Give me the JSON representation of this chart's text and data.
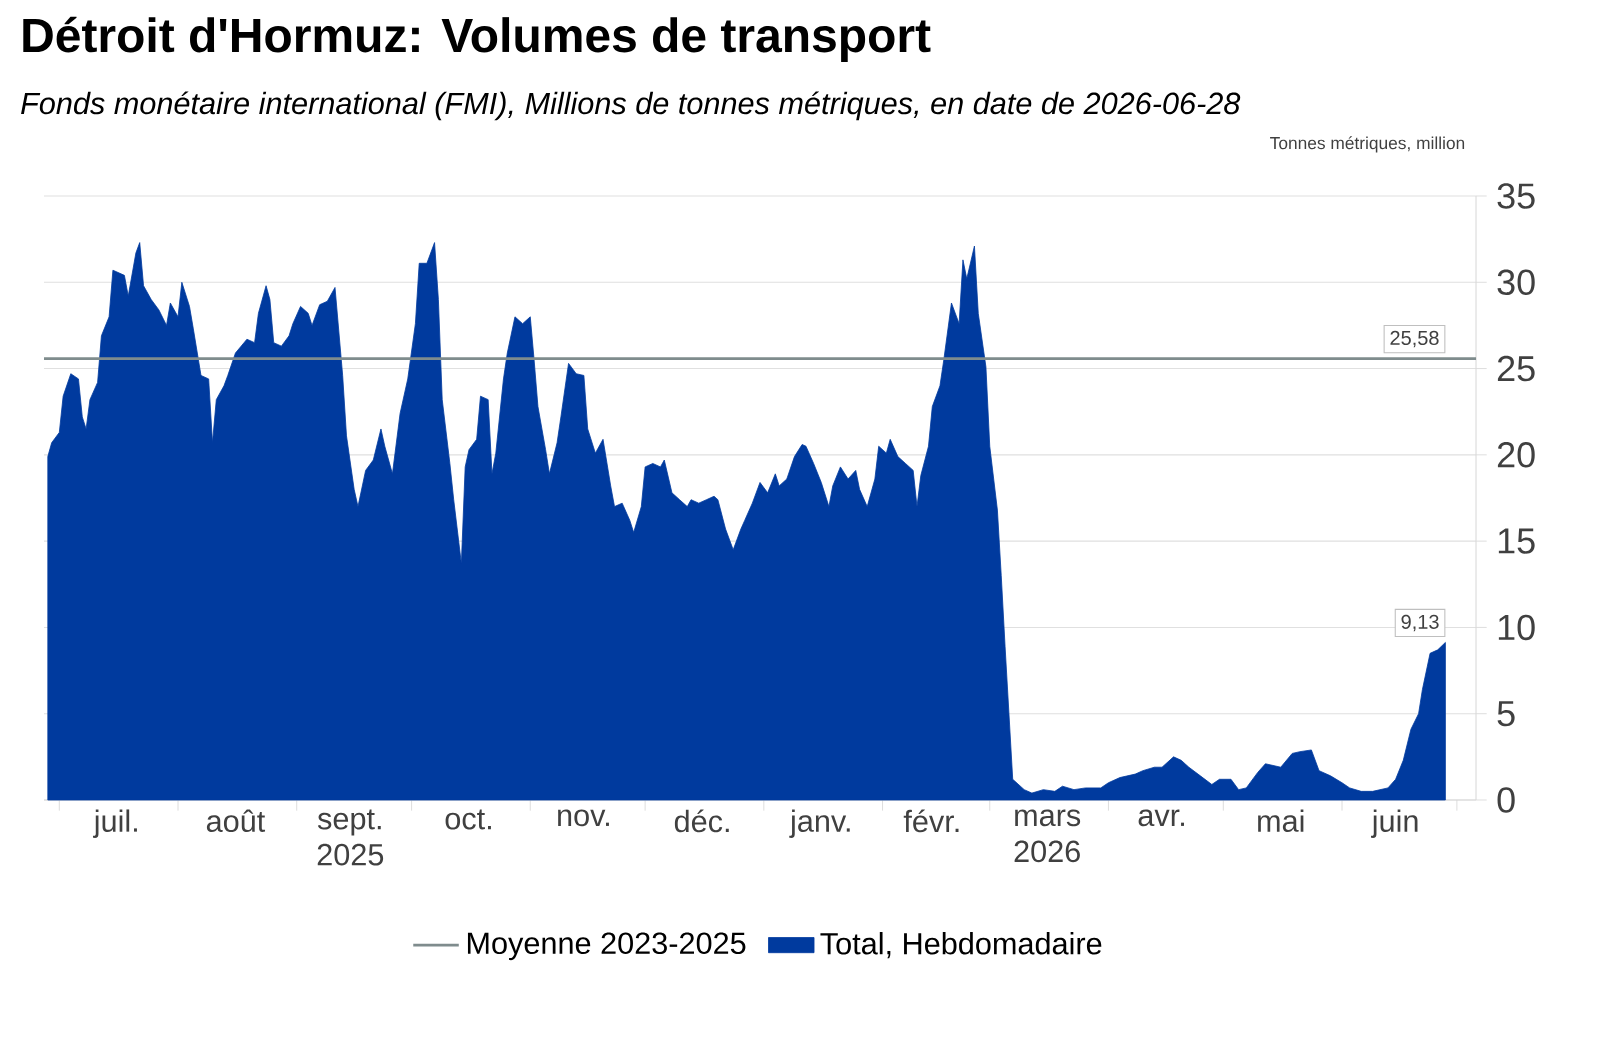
{
  "chart_data": {
    "type": "area",
    "title": "Détroit d'Hormuz: Volumes de transport",
    "subtitle": "Fonds monétaire international (FMI), Millions de tonnes métriques, en date de 2026-06-28",
    "ylabel": "Tonnes métriques, million",
    "x": [
      "2025-06-28",
      "2025-06-29",
      "2025-07-01",
      "2025-07-02",
      "2025-07-04",
      "2025-07-06",
      "2025-07-07",
      "2025-07-08",
      "2025-07-09",
      "2025-07-11",
      "2025-07-12",
      "2025-07-14",
      "2025-07-15",
      "2025-07-18",
      "2025-07-19",
      "2025-07-21",
      "2025-07-22",
      "2025-07-23",
      "2025-07-25",
      "2025-07-27",
      "2025-07-29",
      "2025-07-30",
      "2025-08-01",
      "2025-08-02",
      "2025-08-04",
      "2025-08-05",
      "2025-08-07",
      "2025-08-09",
      "2025-08-10",
      "2025-08-11",
      "2025-08-13",
      "2025-08-14",
      "2025-08-16",
      "2025-08-19",
      "2025-08-21",
      "2025-08-22",
      "2025-08-24",
      "2025-08-25",
      "2025-08-26",
      "2025-08-28",
      "2025-08-30",
      "2025-08-31",
      "2025-09-02",
      "2025-09-04",
      "2025-09-05",
      "2025-09-07",
      "2025-09-09",
      "2025-09-11",
      "2025-09-13",
      "2025-09-14",
      "2025-09-16",
      "2025-09-17",
      "2025-09-19",
      "2025-09-21",
      "2025-09-23",
      "2025-09-24",
      "2025-09-26",
      "2025-09-28",
      "2025-09-30",
      "2025-10-02",
      "2025-10-03",
      "2025-10-05",
      "2025-10-07",
      "2025-10-08",
      "2025-10-09",
      "2025-10-11",
      "2025-10-12",
      "2025-10-14",
      "2025-10-15",
      "2025-10-16",
      "2025-10-18",
      "2025-10-19",
      "2025-10-21",
      "2025-10-22",
      "2025-10-23",
      "2025-10-25",
      "2025-10-26",
      "2025-10-28",
      "2025-10-30",
      "2025-11-01",
      "2025-11-02",
      "2025-11-03",
      "2025-11-05",
      "2025-11-06",
      "2025-11-08",
      "2025-11-09",
      "2025-11-11",
      "2025-11-13",
      "2025-11-15",
      "2025-11-16",
      "2025-11-18",
      "2025-11-20",
      "2025-11-22",
      "2025-11-23",
      "2025-11-25",
      "2025-11-27",
      "2025-11-28",
      "2025-11-30",
      "2025-12-01",
      "2025-12-03",
      "2025-12-05",
      "2025-12-06",
      "2025-12-08",
      "2025-12-10",
      "2025-12-12",
      "2025-12-13",
      "2025-12-15",
      "2025-12-17",
      "2025-12-19",
      "2025-12-20",
      "2025-12-22",
      "2025-12-24",
      "2025-12-26",
      "2025-12-27",
      "2025-12-29",
      "2025-12-31",
      "2026-01-02",
      "2026-01-04",
      "2026-01-05",
      "2026-01-07",
      "2026-01-09",
      "2026-01-11",
      "2026-01-12",
      "2026-01-14",
      "2026-01-16",
      "2026-01-18",
      "2026-01-19",
      "2026-01-21",
      "2026-01-23",
      "2026-01-25",
      "2026-01-26",
      "2026-01-28",
      "2026-01-30",
      "2026-01-31",
      "2026-02-02",
      "2026-02-03",
      "2026-02-05",
      "2026-02-07",
      "2026-02-09",
      "2026-02-10",
      "2026-02-11",
      "2026-02-13",
      "2026-02-14",
      "2026-02-16",
      "2026-02-17",
      "2026-02-19",
      "2026-02-21",
      "2026-02-22",
      "2026-02-23",
      "2026-02-25",
      "2026-02-26",
      "2026-02-28",
      "2026-03-01",
      "2026-03-03",
      "2026-03-04",
      "2026-03-05",
      "2026-03-07",
      "2026-03-10",
      "2026-03-12",
      "2026-03-15",
      "2026-03-18",
      "2026-03-20",
      "2026-03-23",
      "2026-03-26",
      "2026-03-30",
      "2026-04-01",
      "2026-04-04",
      "2026-04-08",
      "2026-04-10",
      "2026-04-13",
      "2026-04-15",
      "2026-04-18",
      "2026-04-20",
      "2026-04-22",
      "2026-04-25",
      "2026-04-28",
      "2026-04-30",
      "2026-05-03",
      "2026-05-05",
      "2026-05-07",
      "2026-05-10",
      "2026-05-12",
      "2026-05-16",
      "2026-05-19",
      "2026-05-21",
      "2026-05-24",
      "2026-05-26",
      "2026-05-29",
      "2026-06-01",
      "2026-06-03",
      "2026-06-06",
      "2026-06-09",
      "2026-06-13",
      "2026-06-15",
      "2026-06-17",
      "2026-06-19",
      "2026-06-21",
      "2026-06-22",
      "2026-06-24",
      "2026-06-26",
      "2026-06-28"
    ],
    "series": [
      {
        "name": "Total, Hebdomadaire",
        "color": "#003a9e",
        "values": [
          19.9,
          20.7,
          21.3,
          23.4,
          24.7,
          24.4,
          22.2,
          21.5,
          23.2,
          24.2,
          26.9,
          28.0,
          30.7,
          30.4,
          29.2,
          31.7,
          32.3,
          29.8,
          29.0,
          28.4,
          27.5,
          28.8,
          28.0,
          30.0,
          28.6,
          27.3,
          24.6,
          24.4,
          20.7,
          23.2,
          24.0,
          24.6,
          25.9,
          26.7,
          26.5,
          28.2,
          29.8,
          29.0,
          26.5,
          26.3,
          26.9,
          27.6,
          28.6,
          28.2,
          27.5,
          28.7,
          28.9,
          29.7,
          24.6,
          21.1,
          18.0,
          17.0,
          19.1,
          19.7,
          21.5,
          20.5,
          18.9,
          22.4,
          24.4,
          27.6,
          31.1,
          31.1,
          32.3,
          29.0,
          23.2,
          19.5,
          17.4,
          13.7,
          19.3,
          20.3,
          20.9,
          23.4,
          23.2,
          18.9,
          20.1,
          24.4,
          25.9,
          28.0,
          27.6,
          28.0,
          25.5,
          22.8,
          20.3,
          18.9,
          20.7,
          22.2,
          25.3,
          24.7,
          24.6,
          21.5,
          20.1,
          20.9,
          18.2,
          17.0,
          17.2,
          16.2,
          15.5,
          17.0,
          19.3,
          19.5,
          19.3,
          19.7,
          17.8,
          17.4,
          17.0,
          17.4,
          17.2,
          17.4,
          17.6,
          17.4,
          15.7,
          14.5,
          15.7,
          16.2,
          17.2,
          18.4,
          17.8,
          18.9,
          18.2,
          18.6,
          19.9,
          20.6,
          20.5,
          19.5,
          18.4,
          17.0,
          18.2,
          19.3,
          18.6,
          19.1,
          18.0,
          17.0,
          18.6,
          20.5,
          20.1,
          20.9,
          19.9,
          19.5,
          19.1,
          17.0,
          18.8,
          20.5,
          22.8,
          24.0,
          25.5,
          28.8,
          27.6,
          31.3,
          30.2,
          32.1,
          28.2,
          25.1,
          20.5,
          16.8,
          13.0,
          8.9,
          1.2,
          0.6,
          0.4,
          0.6,
          0.5,
          0.8,
          0.6,
          0.7,
          0.7,
          1.0,
          1.3,
          1.5,
          1.7,
          1.9,
          1.9,
          2.5,
          2.3,
          1.9,
          1.4,
          0.9,
          1.2,
          1.2,
          0.6,
          0.7,
          1.6,
          2.1,
          1.9,
          2.7,
          2.8,
          2.9,
          1.7,
          1.4,
          1.0,
          0.7,
          0.5,
          0.5,
          0.7,
          1.2,
          2.3,
          4.1,
          5.0,
          6.4,
          8.5,
          8.7,
          9.13
        ]
      }
    ],
    "xlim": [
      "2025-06-27",
      "2026-07-06"
    ],
    "xticks": [
      {
        "value": "2025-07-01",
        "label": null
      },
      {
        "value": "2025-08-01",
        "label": null
      },
      {
        "value": "2025-09-01",
        "label": null
      },
      {
        "value": "2025-10-01",
        "label": null
      },
      {
        "value": "2025-11-01",
        "label": null
      },
      {
        "value": "2025-12-01",
        "label": null
      },
      {
        "value": "2026-01-01",
        "label": null
      },
      {
        "value": "2026-02-01",
        "label": null
      },
      {
        "value": "2026-03-01",
        "label": null
      },
      {
        "value": "2026-04-01",
        "label": null
      },
      {
        "value": "2026-05-01",
        "label": null
      },
      {
        "value": "2026-06-01",
        "label": null
      },
      {
        "value": "2026-07-01",
        "label": null
      },
      {
        "value": "2025-07-16",
        "label": "juil."
      },
      {
        "value": "2025-08-16",
        "label": "août"
      },
      {
        "value": "2025-09-15",
        "label": "sept. 2025"
      },
      {
        "value": "2025-10-16",
        "label": "oct."
      },
      {
        "value": "2025-11-15",
        "label": "nov."
      },
      {
        "value": "2025-12-16",
        "label": "déc."
      },
      {
        "value": "2026-01-16",
        "label": "janv."
      },
      {
        "value": "2026-02-14",
        "label": "févr."
      },
      {
        "value": "2026-03-16",
        "label": "mars 2026"
      },
      {
        "value": "2026-04-15",
        "label": "avr."
      },
      {
        "value": "2026-05-16",
        "label": "mai"
      },
      {
        "value": "2026-06-15",
        "label": "juin"
      }
    ],
    "ylim": [
      0,
      35
    ],
    "yticks": [
      0,
      5,
      10,
      15,
      20,
      25,
      30,
      35
    ],
    "grid": "y",
    "legend": "bottom",
    "ref_lines": [
      {
        "axis": "y",
        "value": 25.58,
        "label": "Moyenne 2023-2025",
        "color": "#7f8c8d"
      }
    ],
    "annotations": [
      {
        "text": "25,58",
        "x": "2026-06-28",
        "y": 25.58
      },
      {
        "text": "9,13",
        "x": "2026-06-28",
        "y": 9.13
      }
    ]
  }
}
